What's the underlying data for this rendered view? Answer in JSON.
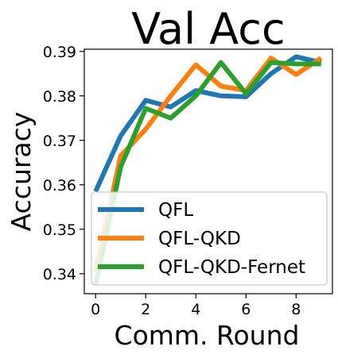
{
  "chart_data": {
    "type": "line",
    "title": "Val Acc",
    "xlabel": "Comm. Round",
    "ylabel": "Accuracy",
    "x": [
      0,
      1,
      2,
      3,
      4,
      5,
      6,
      7,
      8,
      9
    ],
    "xlim": [
      -0.45,
      9.45
    ],
    "ylim": [
      0.3355,
      0.3905
    ],
    "xticks": [
      0,
      2,
      4,
      6,
      8
    ],
    "yticks": [
      0.34,
      0.35,
      0.36,
      0.37,
      0.38,
      0.39
    ],
    "xtick_labels": [
      "0",
      "2",
      "4",
      "6",
      "8"
    ],
    "ytick_labels": [
      "0.34",
      "0.35",
      "0.36",
      "0.37",
      "0.38",
      "0.39"
    ],
    "grid": false,
    "legend_position": "lower-right",
    "series": [
      {
        "name": "QFL",
        "color": "#1f77b4",
        "values": [
          0.3585,
          0.371,
          0.379,
          0.3775,
          0.3812,
          0.38,
          0.3798,
          0.385,
          0.3888,
          0.3875
        ]
      },
      {
        "name": "QFL-QKD",
        "color": "#ff7f0e",
        "values": [
          0.3405,
          0.3665,
          0.3725,
          0.38,
          0.387,
          0.3822,
          0.3812,
          0.3885,
          0.3848,
          0.3885
        ]
      },
      {
        "name": "QFL-QKD-Fernet",
        "color": "#2ca02c",
        "values": [
          0.3375,
          0.364,
          0.3772,
          0.375,
          0.38,
          0.3875,
          0.3805,
          0.3875,
          0.3872,
          0.3872
        ]
      }
    ]
  }
}
